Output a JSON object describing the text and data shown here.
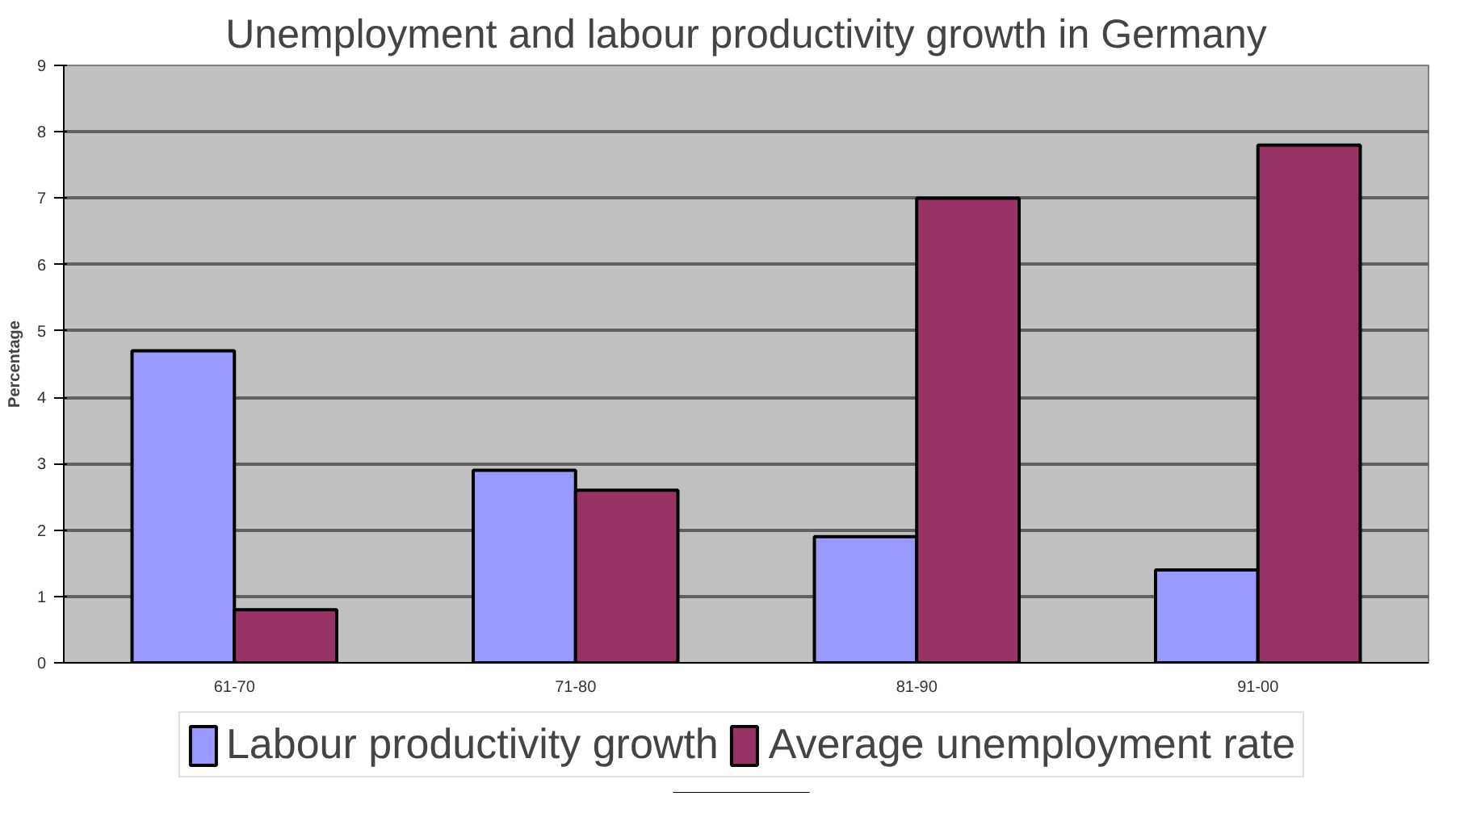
{
  "chart_data": {
    "type": "bar",
    "title": "Unemployment and labour productivity growth in Germany",
    "ylabel": "Percentage",
    "categories": [
      "61-70",
      "71-80",
      "81-90",
      "91-00"
    ],
    "series": [
      {
        "name": "Labour productivity growth",
        "color": "#9999ff",
        "values": [
          4.7,
          2.9,
          1.9,
          1.4
        ]
      },
      {
        "name": "Average unemployment rate",
        "color": "#993366",
        "values": [
          0.8,
          2.6,
          7.0,
          7.8
        ]
      }
    ],
    "ylim": [
      0,
      9
    ],
    "yticks": [
      0,
      1,
      2,
      3,
      4,
      5,
      6,
      7,
      8,
      9
    ],
    "grid": "y",
    "legend": "bottom"
  }
}
